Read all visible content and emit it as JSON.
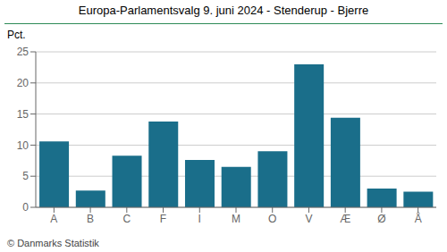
{
  "chart_data": {
    "type": "bar",
    "title": "Europa-Parlamentsvalg 9. juni 2024 - Stenderup - Bjerre",
    "ylabel": "Pct.",
    "annotations": [
      "© Danmarks Statistik"
    ],
    "categories": [
      "A",
      "B",
      "C",
      "F",
      "I",
      "M",
      "O",
      "V",
      "Æ",
      "Ø",
      "Å"
    ],
    "values": [
      10.6,
      2.7,
      8.3,
      13.8,
      7.6,
      6.5,
      9.0,
      23.0,
      14.4,
      3.0,
      2.5
    ],
    "color": "#1a6e8a",
    "ylim": [
      0,
      25
    ],
    "yticks": [
      0,
      5,
      10,
      15,
      20,
      25
    ],
    "grid": true
  }
}
